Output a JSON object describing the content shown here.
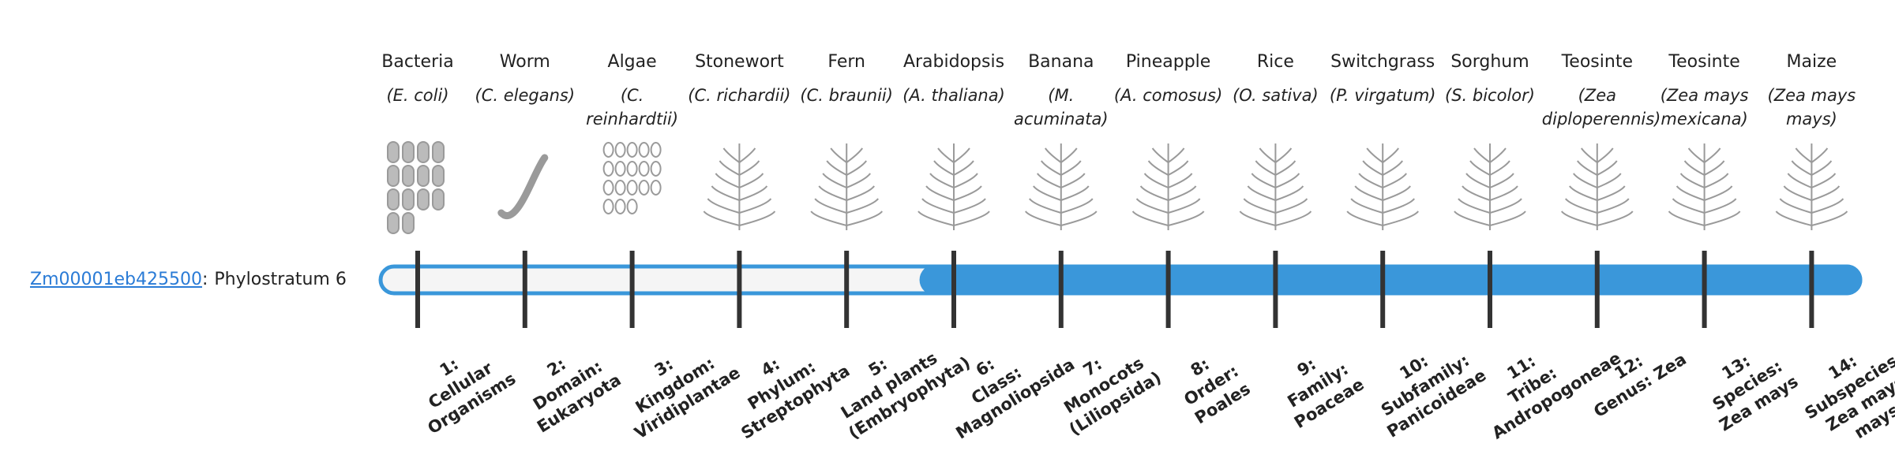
{
  "gene": {
    "id": "Zm00001eb425500",
    "separator": ":",
    "label": "Phylostratum",
    "stratum": 6
  },
  "organisms": [
    {
      "common": "Bacteria",
      "scientific": "(E. coli)"
    },
    {
      "common": "Worm",
      "scientific": "(C. elegans)"
    },
    {
      "common": "Algae",
      "scientific": "(C. reinhardtii)"
    },
    {
      "common": "Stonewort",
      "scientific": "(C. richardii)"
    },
    {
      "common": "Fern",
      "scientific": "(C. braunii)"
    },
    {
      "common": "Arabidopsis",
      "scientific": "(A. thaliana)"
    },
    {
      "common": "Banana",
      "scientific": "(M. acuminata)"
    },
    {
      "common": "Pineapple",
      "scientific": "(A. comosus)"
    },
    {
      "common": "Rice",
      "scientific": "(O. sativa)"
    },
    {
      "common": "Switchgrass",
      "scientific": "(P. virgatum)"
    },
    {
      "common": "Sorghum",
      "scientific": "(S. bicolor)"
    },
    {
      "common": "Teosinte",
      "scientific": "(Zea diploperennis)"
    },
    {
      "common": "Teosinte",
      "scientific": "(Zea mays mexicana)"
    },
    {
      "common": "Maize",
      "scientific": "(Zea mays mays)"
    }
  ],
  "strata": [
    {
      "label": "1:",
      "name": "Cellular Organisms"
    },
    {
      "label": "2:",
      "name": "Domain: Eukaryota"
    },
    {
      "label": "3:",
      "name": "Kingdom: Viridiplantae"
    },
    {
      "label": "4:",
      "name": "Phylum: Streptophyta"
    },
    {
      "label": "5:",
      "name": "Land plants (Embryophyta)"
    },
    {
      "label": "6:",
      "name": "Class: Magnoliopsida"
    },
    {
      "label": "7:",
      "name": "Monocots (Liliopsida)"
    },
    {
      "label": "8:",
      "name": "Order: Poales"
    },
    {
      "label": "9:",
      "name": "Family: Poaceae"
    },
    {
      "label": "10:",
      "name": "Subfamily: Panicoideae"
    },
    {
      "label": "11:",
      "name": "Tribe: Andropogoneae"
    },
    {
      "label": "12:",
      "name": "Genus: Zea"
    },
    {
      "label": "13:",
      "name": "Species: Zea mays"
    },
    {
      "label": "14:",
      "name": "Subspecies: Zea mays mays"
    }
  ]
}
